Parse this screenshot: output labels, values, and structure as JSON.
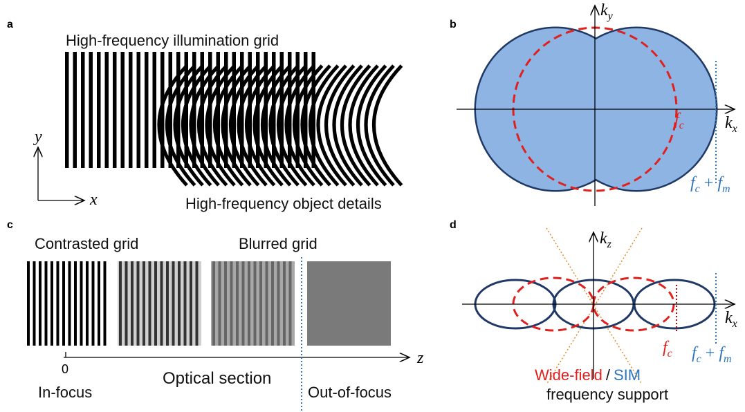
{
  "panel_a": {
    "label": "a",
    "grid_title": "High-frequency illumination grid",
    "object_title": "High-frequency object details",
    "axis_y": "y",
    "axis_x": "x"
  },
  "panel_b": {
    "label": "b",
    "ky": {
      "base": "k",
      "sub": "y"
    },
    "kx": {
      "base": "k",
      "sub": "x"
    },
    "fc": {
      "base": "f",
      "sub": "c"
    },
    "fcfm": {
      "f1": "f",
      "s1": "c",
      "plus": "+",
      "f2": "f",
      "s2": "m"
    }
  },
  "panel_c": {
    "label": "c",
    "contrasted": "Contrasted grid",
    "blurred": "Blurred grid",
    "zero": "0",
    "axis_z": "z",
    "in_focus": "In-focus",
    "optical_section": "Optical section",
    "out_of_focus": "Out-of-focus"
  },
  "panel_d": {
    "label": "d",
    "kz": {
      "base": "k",
      "sub": "z"
    },
    "kx": {
      "base": "k",
      "sub": "x"
    },
    "fc": {
      "base": "f",
      "sub": "c"
    },
    "fcfm": {
      "f1": "f",
      "s1": "c",
      "plus": "+",
      "f2": "f",
      "s2": "m"
    },
    "widefield": "Wide-field",
    "slash": "/",
    "sim": "SIM",
    "support": "frequency support"
  }
}
